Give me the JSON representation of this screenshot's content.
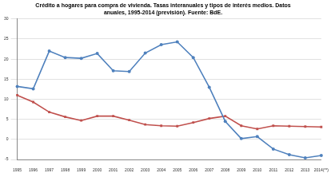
{
  "chart_data": {
    "type": "line",
    "title": [
      "Crédito a hogares para compra de vivienda. Tasas interanuales y tipos de interés medios. Datos",
      "anuales, 1995-2014 (previsión). Fuente: BdE."
    ],
    "categories": [
      "1995",
      "1996",
      "1997",
      "1998",
      "1999",
      "2000",
      "2001",
      "2002",
      "2003",
      "2004",
      "2005",
      "2006",
      "2007",
      "2008",
      "2009",
      "2010",
      "2011",
      "2012",
      "2013",
      "2014(**)"
    ],
    "series": [
      {
        "color": "#4f81bd",
        "marker": "circle",
        "values": [
          13.2,
          12.6,
          22,
          20.4,
          20.2,
          21.4,
          17.1,
          16.9,
          21.5,
          23.6,
          24.3,
          20.4,
          13,
          4.5,
          0.2,
          0.7,
          -2.4,
          -3.8,
          -4.6,
          -4.0
        ]
      },
      {
        "color": "#c0504d",
        "marker": "rect",
        "values": [
          11,
          9.3,
          6.8,
          5.6,
          4.7,
          5.8,
          5.8,
          4.8,
          3.7,
          3.4,
          3.3,
          4.2,
          5.2,
          5.8,
          3.4,
          2.6,
          3.4,
          3.3,
          3.2,
          3.1
        ]
      }
    ],
    "ylim": [
      -5,
      30
    ],
    "yticks": [
      -5,
      0,
      5,
      10,
      15,
      20,
      25,
      30
    ],
    "grid": true
  }
}
